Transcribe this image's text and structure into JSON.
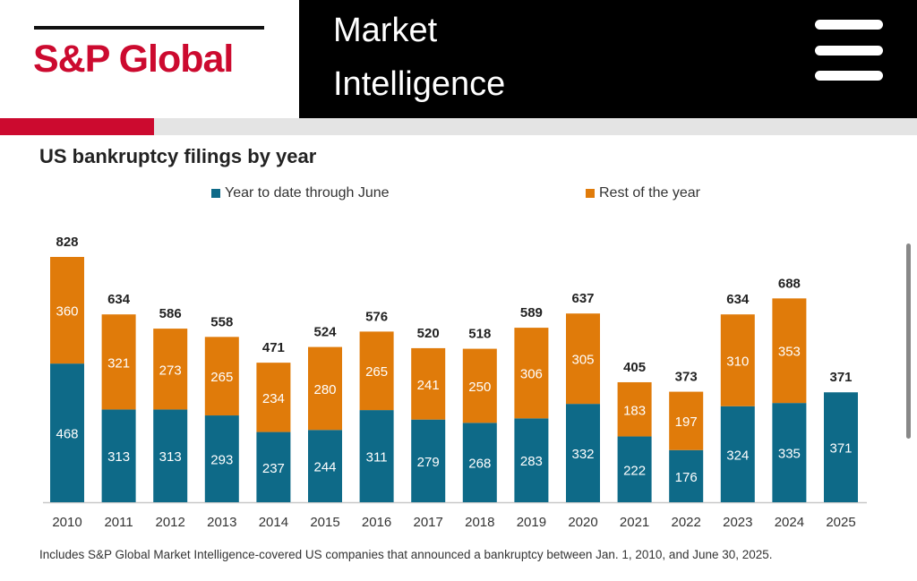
{
  "header": {
    "logo_text": "S&P Global",
    "product_line1": "Market",
    "product_line2": "Intelligence",
    "menu_icon": "hamburger-menu-icon"
  },
  "colors": {
    "brand_red": "#cc0a2f",
    "ytd": "#0e6a88",
    "rest": "#e07b0a"
  },
  "chart_data": {
    "type": "bar",
    "stacked": true,
    "title": "US bankruptcy filings by year",
    "xlabel": "",
    "ylabel": "",
    "ylim": [
      0,
      828
    ],
    "grid": false,
    "legend_position": "top",
    "categories": [
      "2010",
      "2011",
      "2012",
      "2013",
      "2014",
      "2015",
      "2016",
      "2017",
      "2018",
      "2019",
      "2020",
      "2021",
      "2022",
      "2023",
      "2024",
      "2025"
    ],
    "series": [
      {
        "name": "Year to date through June",
        "values": [
          468,
          313,
          313,
          293,
          237,
          244,
          311,
          279,
          268,
          283,
          332,
          222,
          176,
          324,
          335,
          371
        ]
      },
      {
        "name": "Rest of the year",
        "values": [
          360,
          321,
          273,
          265,
          234,
          280,
          265,
          241,
          250,
          306,
          305,
          183,
          197,
          310,
          353,
          null
        ]
      }
    ],
    "totals": [
      828,
      634,
      586,
      558,
      471,
      524,
      576,
      520,
      518,
      589,
      637,
      405,
      373,
      634,
      688,
      371
    ]
  },
  "footnote": "Includes S&P Global Market Intelligence-covered US companies that announced a bankruptcy between Jan. 1, 2010, and June 30, 2025."
}
